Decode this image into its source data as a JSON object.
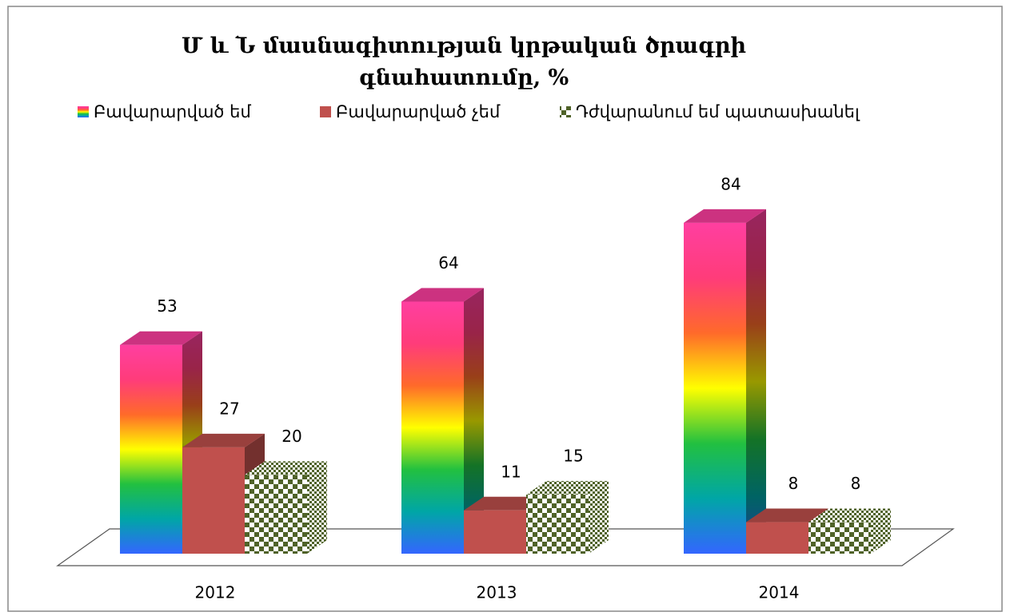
{
  "chart_data": {
    "type": "bar3d",
    "title": "Մ և Ն մասնագիտության կրթական ծրագրի գնահատումը, %",
    "categories": [
      "2012",
      "2013",
      "2014"
    ],
    "series": [
      {
        "name": "Բավարարված եմ",
        "gradient": [
          "#3366ff",
          "#00a6a6",
          "#22c040",
          "#ffff00",
          "#ff6a2a",
          "#ff3c7a",
          "#ff3fa0"
        ],
        "values": [
          53,
          64,
          84
        ]
      },
      {
        "name": "Բավարարված չեմ",
        "color": "#c0504d",
        "values": [
          27,
          11,
          8
        ]
      },
      {
        "name": "Դժվարանում եմ պատասխանել",
        "color": "#4f6228",
        "pattern": "checker",
        "values": [
          20,
          15,
          8
        ]
      }
    ],
    "legend": "top"
  }
}
